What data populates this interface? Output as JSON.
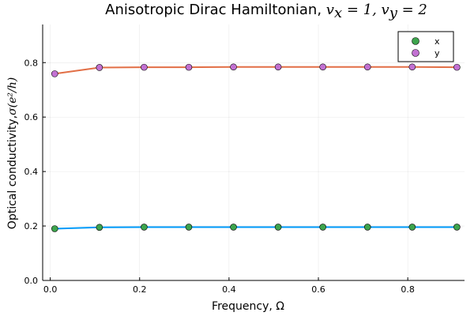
{
  "chart_data": {
    "type": "scatter",
    "title": {
      "text": "Anisotropic Dirac Hamiltonian,",
      "math_parts": [
        {
          "base": "v",
          "sub": "x",
          "rest": " = 1, "
        },
        {
          "base": "v",
          "sub": "y",
          "rest": " = 2"
        }
      ]
    },
    "xlabel": "Frequency, Ω",
    "ylabel": {
      "text": "Optical conductivity,",
      "math": "σ(e²/h)"
    },
    "xlim": [
      -0.017,
      0.927
    ],
    "ylim": [
      0.0,
      0.94
    ],
    "xticks": [
      {
        "value": 0.0,
        "label": "0.0"
      },
      {
        "value": 0.2,
        "label": "0.2"
      },
      {
        "value": 0.4,
        "label": "0.4"
      },
      {
        "value": 0.6,
        "label": "0.6"
      },
      {
        "value": 0.8,
        "label": "0.8"
      }
    ],
    "yticks": [
      {
        "value": 0.0,
        "label": "0.0"
      },
      {
        "value": 0.2,
        "label": "0.2"
      },
      {
        "value": 0.4,
        "label": "0.4"
      },
      {
        "value": 0.6,
        "label": "0.6"
      },
      {
        "value": 0.8,
        "label": "0.8"
      }
    ],
    "grid": true,
    "legend_position": "top-right",
    "x": [
      0.01,
      0.11,
      0.21,
      0.31,
      0.41,
      0.51,
      0.61,
      0.71,
      0.81,
      0.91
    ],
    "series": [
      {
        "name": "x",
        "values": [
          0.19,
          0.195,
          0.196,
          0.196,
          0.196,
          0.196,
          0.196,
          0.196,
          0.196,
          0.196
        ],
        "marker_color": "#3da44d",
        "line_color": "#009af9"
      },
      {
        "name": "y",
        "values": [
          0.759,
          0.782,
          0.783,
          0.783,
          0.784,
          0.784,
          0.784,
          0.784,
          0.784,
          0.783
        ],
        "marker_color": "#c271d2",
        "line_color": "#e26f46"
      }
    ]
  }
}
